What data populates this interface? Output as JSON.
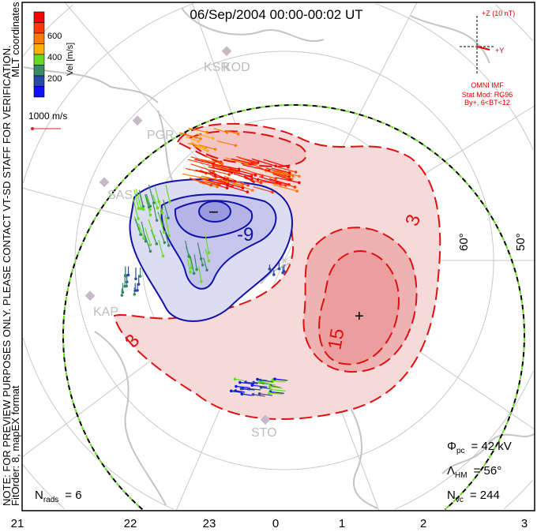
{
  "title": "06/Sep/2004 00:00-00:02 UT",
  "side_notes": {
    "note": "NOTE: FOR PREVIEW PURPOSES ONLY. PLEASE CONTACT VT-SD STAFF FOR VERIFICATION.",
    "fit": "FitOrder: 8, mapEX format",
    "coords": "MLT coordinates"
  },
  "colorbar": {
    "label": "Vel [m/s]",
    "ticks": [
      "600",
      "400",
      "200"
    ],
    "colors": [
      "#ff0000",
      "#ff3a00",
      "#ff7a00",
      "#ffb000",
      "#66dd22",
      "#3a8a6a",
      "#2a4aa8",
      "#1010ff"
    ]
  },
  "reference_vector": {
    "label": "1000 m/s",
    "color": "#e02020"
  },
  "imf": {
    "z_label": "+Z (10 nT)",
    "y_label": "+Y",
    "source": "OMNI IMF",
    "model": "Stat Mod: RG96",
    "bin": "By+, 6<BT<12",
    "color": "#e00000"
  },
  "stations": [
    "KSR",
    "KOD",
    "PGR",
    "SAS",
    "KAP",
    "STO"
  ],
  "latitude_labels": [
    "60°",
    "50°"
  ],
  "contour_labels": [
    "-9",
    "3",
    "15",
    "3"
  ],
  "extrema_marks": [
    "−",
    "+"
  ],
  "stats": {
    "phi_pc": {
      "sym": "Φ",
      "sub": "pc",
      "value": "= 42 kV"
    },
    "lambda_hm": {
      "sym": "Λ",
      "sub": "HM",
      "value": "= 56°"
    },
    "n_vc": {
      "sym": "N",
      "sub": "vc",
      "value": "= 244"
    },
    "n_rads": {
      "sym": "N",
      "sub": "rads",
      "value": "= 6"
    }
  },
  "mlt_ticks": [
    "21",
    "22",
    "23",
    "0",
    "1",
    "2",
    "3"
  ],
  "chart_data": {
    "type": "map",
    "title": "06/Sep/2004 00:00-00:02 UT",
    "cross_polar_cap_potential_kV": 42,
    "heppner_maynard_boundary_deg": 56,
    "n_vectors": 244,
    "n_radars": 6,
    "potential_contours_kV": [
      -9,
      3,
      15
    ],
    "velocity_scale_ms": [
      0,
      800
    ]
  }
}
